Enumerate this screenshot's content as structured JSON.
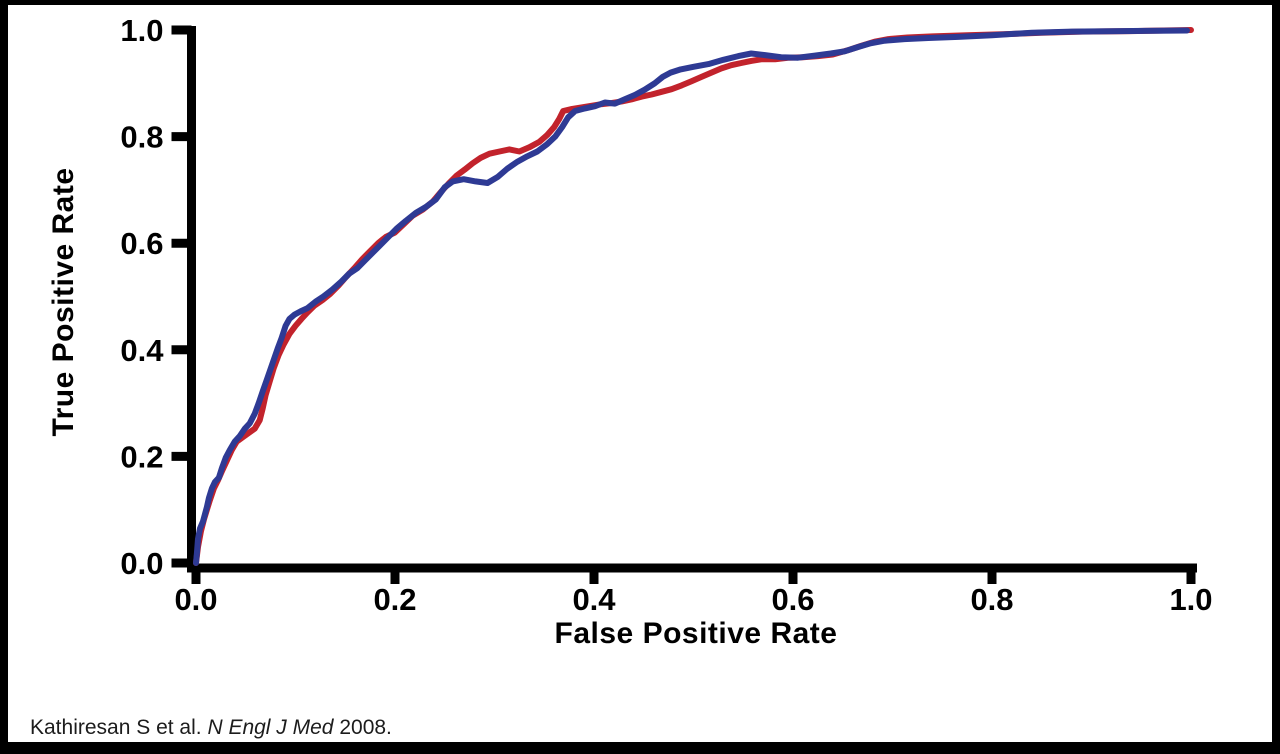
{
  "figure": {
    "background": "#ffffff",
    "border_color": "#000000"
  },
  "citation": {
    "prefix": "Kathiresan S et al. ",
    "journal": "N Engl J Med",
    "suffix": " 2008."
  },
  "chart_data": {
    "type": "line",
    "title": "",
    "xlabel": "False Positive Rate",
    "ylabel": "True Positive Rate",
    "xlim": [
      0,
      1
    ],
    "ylim": [
      0,
      1
    ],
    "grid": false,
    "legend": "none",
    "axis_color": "#000000",
    "tick_label_color": "#000000",
    "x_ticks": [
      0,
      0.2,
      0.4,
      0.6,
      0.8,
      1
    ],
    "x_tick_labels": [
      "0.0",
      "0.2",
      "0.4",
      "0.6",
      "0.8",
      "1.0"
    ],
    "y_ticks": [
      0,
      0.2,
      0.4,
      0.6,
      0.8,
      1
    ],
    "y_tick_labels": [
      "0.0",
      "0.2",
      "0.4",
      "0.6",
      "0.8",
      "1.0"
    ],
    "series": [
      {
        "name": "roc-curve-red",
        "color": "#C2232C",
        "stroke_width": 6,
        "points": [
          [
            0.0,
            0.0
          ],
          [
            0.002,
            0.03
          ],
          [
            0.005,
            0.06
          ],
          [
            0.008,
            0.082
          ],
          [
            0.011,
            0.1
          ],
          [
            0.014,
            0.118
          ],
          [
            0.018,
            0.14
          ],
          [
            0.022,
            0.155
          ],
          [
            0.026,
            0.172
          ],
          [
            0.031,
            0.192
          ],
          [
            0.036,
            0.212
          ],
          [
            0.041,
            0.228
          ],
          [
            0.047,
            0.236
          ],
          [
            0.053,
            0.244
          ],
          [
            0.059,
            0.252
          ],
          [
            0.064,
            0.268
          ],
          [
            0.067,
            0.29
          ],
          [
            0.07,
            0.315
          ],
          [
            0.074,
            0.34
          ],
          [
            0.078,
            0.365
          ],
          [
            0.083,
            0.39
          ],
          [
            0.088,
            0.41
          ],
          [
            0.094,
            0.43
          ],
          [
            0.1,
            0.445
          ],
          [
            0.106,
            0.458
          ],
          [
            0.112,
            0.47
          ],
          [
            0.119,
            0.483
          ],
          [
            0.127,
            0.493
          ],
          [
            0.135,
            0.505
          ],
          [
            0.143,
            0.52
          ],
          [
            0.151,
            0.537
          ],
          [
            0.159,
            0.553
          ],
          [
            0.167,
            0.57
          ],
          [
            0.175,
            0.585
          ],
          [
            0.183,
            0.6
          ],
          [
            0.191,
            0.612
          ],
          [
            0.2,
            0.62
          ],
          [
            0.209,
            0.636
          ],
          [
            0.218,
            0.652
          ],
          [
            0.228,
            0.663
          ],
          [
            0.238,
            0.678
          ],
          [
            0.247,
            0.698
          ],
          [
            0.254,
            0.712
          ],
          [
            0.262,
            0.727
          ],
          [
            0.27,
            0.738
          ],
          [
            0.278,
            0.75
          ],
          [
            0.286,
            0.76
          ],
          [
            0.295,
            0.768
          ],
          [
            0.305,
            0.772
          ],
          [
            0.315,
            0.776
          ],
          [
            0.325,
            0.772
          ],
          [
            0.335,
            0.78
          ],
          [
            0.345,
            0.79
          ],
          [
            0.353,
            0.803
          ],
          [
            0.36,
            0.818
          ],
          [
            0.365,
            0.833
          ],
          [
            0.369,
            0.848
          ],
          [
            0.378,
            0.852
          ],
          [
            0.388,
            0.855
          ],
          [
            0.398,
            0.858
          ],
          [
            0.408,
            0.861
          ],
          [
            0.418,
            0.863
          ],
          [
            0.428,
            0.866
          ],
          [
            0.438,
            0.87
          ],
          [
            0.448,
            0.875
          ],
          [
            0.458,
            0.879
          ],
          [
            0.468,
            0.884
          ],
          [
            0.478,
            0.889
          ],
          [
            0.488,
            0.896
          ],
          [
            0.498,
            0.904
          ],
          [
            0.508,
            0.912
          ],
          [
            0.518,
            0.92
          ],
          [
            0.528,
            0.928
          ],
          [
            0.538,
            0.934
          ],
          [
            0.548,
            0.938
          ],
          [
            0.558,
            0.942
          ],
          [
            0.568,
            0.945
          ],
          [
            0.582,
            0.945
          ],
          [
            0.596,
            0.948
          ],
          [
            0.61,
            0.949
          ],
          [
            0.625,
            0.951
          ],
          [
            0.64,
            0.954
          ],
          [
            0.655,
            0.962
          ],
          [
            0.668,
            0.97
          ],
          [
            0.682,
            0.978
          ],
          [
            0.696,
            0.983
          ],
          [
            0.715,
            0.986
          ],
          [
            0.74,
            0.988
          ],
          [
            0.775,
            0.99
          ],
          [
            0.81,
            0.992
          ],
          [
            0.85,
            0.995
          ],
          [
            0.89,
            0.997
          ],
          [
            0.94,
            0.998
          ],
          [
            1.0,
            1.0
          ]
        ]
      },
      {
        "name": "roc-curve-blue",
        "color": "#2E3A94",
        "stroke_width": 6,
        "points": [
          [
            0.0,
            0.0
          ],
          [
            0.001,
            0.02
          ],
          [
            0.002,
            0.045
          ],
          [
            0.004,
            0.065
          ],
          [
            0.007,
            0.078
          ],
          [
            0.009,
            0.092
          ],
          [
            0.011,
            0.105
          ],
          [
            0.013,
            0.122
          ],
          [
            0.016,
            0.14
          ],
          [
            0.019,
            0.152
          ],
          [
            0.023,
            0.16
          ],
          [
            0.026,
            0.178
          ],
          [
            0.03,
            0.198
          ],
          [
            0.034,
            0.212
          ],
          [
            0.039,
            0.228
          ],
          [
            0.044,
            0.238
          ],
          [
            0.049,
            0.252
          ],
          [
            0.054,
            0.262
          ],
          [
            0.059,
            0.28
          ],
          [
            0.063,
            0.3
          ],
          [
            0.067,
            0.322
          ],
          [
            0.072,
            0.348
          ],
          [
            0.077,
            0.375
          ],
          [
            0.082,
            0.402
          ],
          [
            0.086,
            0.422
          ],
          [
            0.09,
            0.445
          ],
          [
            0.094,
            0.458
          ],
          [
            0.099,
            0.466
          ],
          [
            0.105,
            0.472
          ],
          [
            0.112,
            0.478
          ],
          [
            0.12,
            0.49
          ],
          [
            0.128,
            0.5
          ],
          [
            0.137,
            0.513
          ],
          [
            0.146,
            0.528
          ],
          [
            0.154,
            0.543
          ],
          [
            0.162,
            0.553
          ],
          [
            0.17,
            0.568
          ],
          [
            0.178,
            0.583
          ],
          [
            0.186,
            0.598
          ],
          [
            0.194,
            0.613
          ],
          [
            0.202,
            0.628
          ],
          [
            0.211,
            0.642
          ],
          [
            0.221,
            0.657
          ],
          [
            0.231,
            0.668
          ],
          [
            0.241,
            0.682
          ],
          [
            0.25,
            0.705
          ],
          [
            0.258,
            0.716
          ],
          [
            0.269,
            0.72
          ],
          [
            0.281,
            0.716
          ],
          [
            0.293,
            0.713
          ],
          [
            0.303,
            0.724
          ],
          [
            0.313,
            0.74
          ],
          [
            0.323,
            0.753
          ],
          [
            0.333,
            0.763
          ],
          [
            0.343,
            0.772
          ],
          [
            0.353,
            0.786
          ],
          [
            0.361,
            0.8
          ],
          [
            0.368,
            0.818
          ],
          [
            0.374,
            0.836
          ],
          [
            0.381,
            0.848
          ],
          [
            0.391,
            0.853
          ],
          [
            0.401,
            0.857
          ],
          [
            0.411,
            0.864
          ],
          [
            0.421,
            0.862
          ],
          [
            0.431,
            0.87
          ],
          [
            0.441,
            0.878
          ],
          [
            0.451,
            0.888
          ],
          [
            0.461,
            0.9
          ],
          [
            0.469,
            0.912
          ],
          [
            0.477,
            0.92
          ],
          [
            0.487,
            0.926
          ],
          [
            0.5,
            0.931
          ],
          [
            0.515,
            0.936
          ],
          [
            0.53,
            0.944
          ],
          [
            0.545,
            0.951
          ],
          [
            0.558,
            0.956
          ],
          [
            0.572,
            0.953
          ],
          [
            0.588,
            0.949
          ],
          [
            0.605,
            0.948
          ],
          [
            0.622,
            0.952
          ],
          [
            0.638,
            0.956
          ],
          [
            0.652,
            0.96
          ],
          [
            0.665,
            0.968
          ],
          [
            0.678,
            0.975
          ],
          [
            0.692,
            0.98
          ],
          [
            0.712,
            0.983
          ],
          [
            0.736,
            0.985
          ],
          [
            0.766,
            0.987
          ],
          [
            0.8,
            0.99
          ],
          [
            0.84,
            0.995
          ],
          [
            0.88,
            0.997
          ],
          [
            0.93,
            0.998
          ],
          [
            0.996,
            0.999
          ]
        ]
      }
    ]
  }
}
